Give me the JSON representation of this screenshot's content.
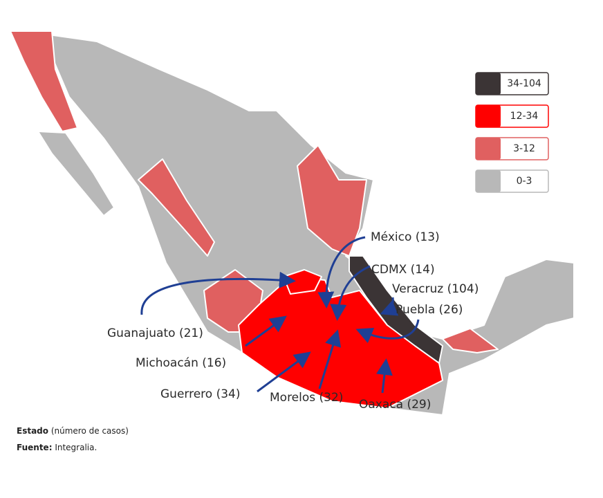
{
  "legend": [
    {
      "label": "34-104",
      "color": "#3b3435"
    },
    {
      "label": "12-34",
      "color": "#ff0000"
    },
    {
      "label": "3-12",
      "color": "#e06060"
    },
    {
      "label": "0-3",
      "color": "#b8b8b8"
    }
  ],
  "annotations": [
    {
      "label": "México (13)"
    },
    {
      "label": "CDMX (14)"
    },
    {
      "label": "Veracruz (104)"
    },
    {
      "label": "Puebla (26)"
    },
    {
      "label": "Guanajuato (21)"
    },
    {
      "label": "Michoacán (16)"
    },
    {
      "label": "Guerrero (34)"
    },
    {
      "label": "Morelos (32)"
    },
    {
      "label": "Oaxaca (29)"
    }
  ],
  "footnote": {
    "lines": [
      {
        "bold": "Estado",
        "text": "(número de casos)"
      },
      {
        "bold": "Fuente:",
        "text": "Integralia."
      }
    ]
  }
}
